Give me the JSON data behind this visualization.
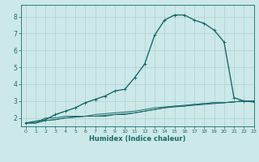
{
  "title": "",
  "xlabel": "Humidex (Indice chaleur)",
  "ylabel": "",
  "bg_color": "#cce8e8",
  "grid_color": "#b0d0d0",
  "line_color": "#1a6b6b",
  "xlim": [
    -0.5,
    23
  ],
  "ylim": [
    1.5,
    8.7
  ],
  "xticks": [
    0,
    1,
    2,
    3,
    4,
    5,
    6,
    7,
    8,
    9,
    10,
    11,
    12,
    13,
    14,
    15,
    16,
    17,
    18,
    19,
    20,
    21,
    22,
    23
  ],
  "yticks": [
    2,
    3,
    4,
    5,
    6,
    7,
    8
  ],
  "series": [
    {
      "x": [
        0,
        1,
        2,
        3,
        4,
        5,
        6,
        7,
        8,
        9,
        10,
        11,
        12,
        13,
        14,
        15,
        16,
        17,
        18,
        19,
        20,
        21,
        22,
        23
      ],
      "y": [
        1.7,
        1.7,
        2.0,
        2.0,
        2.1,
        2.1,
        2.1,
        2.1,
        2.1,
        2.2,
        2.2,
        2.3,
        2.4,
        2.5,
        2.6,
        2.7,
        2.7,
        2.8,
        2.85,
        2.9,
        2.9,
        2.95,
        3.0,
        3.0
      ],
      "style": "-",
      "marker": "none",
      "lw": 0.7
    },
    {
      "x": [
        0,
        1,
        2,
        3,
        4,
        5,
        6,
        7,
        8,
        9,
        10,
        11,
        12,
        13,
        14,
        15,
        16,
        17,
        18,
        19,
        20,
        21,
        22,
        23
      ],
      "y": [
        1.7,
        1.7,
        1.85,
        1.9,
        2.0,
        2.05,
        2.1,
        2.1,
        2.15,
        2.2,
        2.25,
        2.3,
        2.4,
        2.5,
        2.6,
        2.65,
        2.7,
        2.75,
        2.8,
        2.85,
        2.9,
        2.95,
        3.0,
        3.0
      ],
      "style": "-",
      "marker": "none",
      "lw": 0.7
    },
    {
      "x": [
        0,
        1,
        2,
        3,
        4,
        5,
        6,
        7,
        8,
        9,
        10,
        11,
        12,
        13,
        14,
        15,
        16,
        17,
        18,
        19,
        20,
        21,
        22,
        23
      ],
      "y": [
        1.7,
        1.7,
        1.85,
        1.9,
        2.0,
        2.05,
        2.1,
        2.2,
        2.25,
        2.3,
        2.35,
        2.4,
        2.5,
        2.6,
        2.65,
        2.7,
        2.75,
        2.8,
        2.85,
        2.9,
        2.9,
        2.95,
        3.0,
        3.0
      ],
      "style": "-",
      "marker": "none",
      "lw": 0.7
    },
    {
      "x": [
        0,
        2,
        3,
        4,
        5,
        6,
        7,
        8,
        9,
        10,
        11,
        12,
        13,
        14,
        15,
        16,
        17,
        18,
        19,
        20,
        21,
        22,
        23
      ],
      "y": [
        1.7,
        1.9,
        2.2,
        2.4,
        2.6,
        2.9,
        3.1,
        3.3,
        3.6,
        3.7,
        4.4,
        5.2,
        6.9,
        7.8,
        8.1,
        8.1,
        7.8,
        7.6,
        7.2,
        6.5,
        3.2,
        3.0,
        2.95
      ],
      "style": "-",
      "marker": "+",
      "lw": 1.0
    }
  ]
}
